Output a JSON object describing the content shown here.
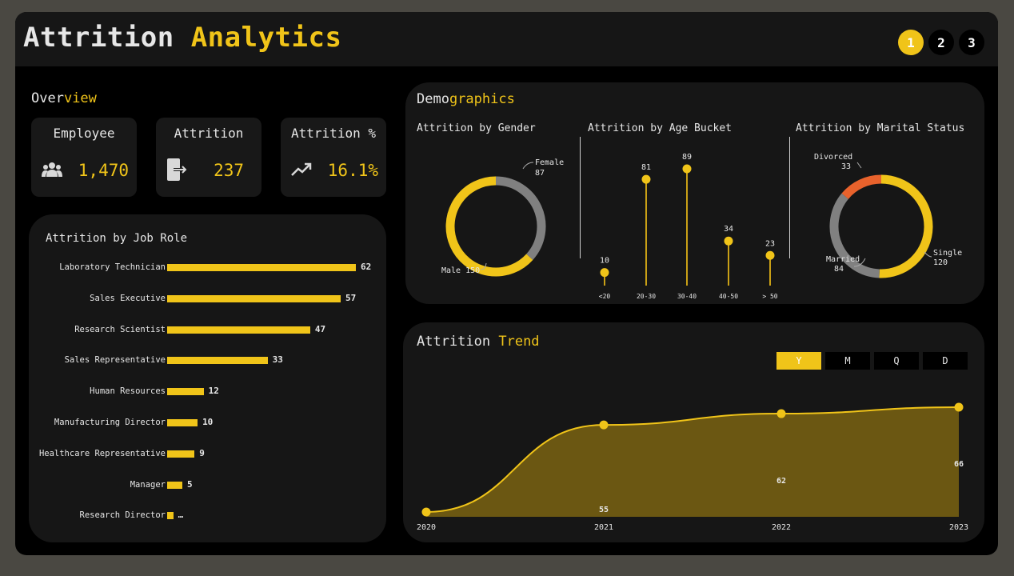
{
  "header": {
    "title_white": "Attrition ",
    "title_yellow": "Analytics",
    "pages": [
      "1",
      "2",
      "3"
    ],
    "active_page": "1"
  },
  "overview": {
    "title_white": "Over",
    "title_yellow": "view",
    "kpis": [
      {
        "label": "Employee",
        "value": "1,470",
        "icon": "people-icon"
      },
      {
        "label": "Attrition",
        "value": "237",
        "icon": "exit-door-icon"
      },
      {
        "label": "Attrition %",
        "value": "16.1%",
        "icon": "trend-up-icon"
      }
    ]
  },
  "job_role": {
    "title": "Attrition by Job Role",
    "rows": [
      {
        "role": "Laboratory Technician",
        "value": 62,
        "label": "62"
      },
      {
        "role": "Sales Executive",
        "value": 57,
        "label": "57"
      },
      {
        "role": "Research Scientist",
        "value": 47,
        "label": "47"
      },
      {
        "role": "Sales Representative",
        "value": 33,
        "label": "33"
      },
      {
        "role": "Human Resources",
        "value": 12,
        "label": "12"
      },
      {
        "role": "Manufacturing Director",
        "value": 10,
        "label": "10"
      },
      {
        "role": "Healthcare Representative",
        "value": 9,
        "label": "9"
      },
      {
        "role": "Manager",
        "value": 5,
        "label": "5"
      },
      {
        "role": "Research Director",
        "value": 2,
        "label": "…"
      }
    ]
  },
  "demographics": {
    "title_white": "Demo",
    "title_yellow": "graphics",
    "gender": {
      "title": "Attrition by Gender",
      "slices": [
        {
          "name": "Female",
          "value": 87,
          "color": "#808080"
        },
        {
          "name": "Male",
          "value": 150,
          "color": "#f0c419"
        }
      ],
      "female_label": "Female",
      "female_value": "87",
      "male_label": "Male 150"
    },
    "age": {
      "title": "Attrition by Age Bucket",
      "buckets": [
        {
          "label": "<20",
          "value": 10,
          "text": "10"
        },
        {
          "label": "20-30",
          "value": 81,
          "text": "81"
        },
        {
          "label": "30-40",
          "value": 89,
          "text": "89"
        },
        {
          "label": "40-50",
          "value": 34,
          "text": "34"
        },
        {
          "label": "> 50",
          "value": 23,
          "text": "23"
        }
      ]
    },
    "marital": {
      "title": "Attrition by Marital Status",
      "slices": [
        {
          "name": "Single",
          "value": 120,
          "color": "#f0c419"
        },
        {
          "name": "Married",
          "value": 84,
          "color": "#808080"
        },
        {
          "name": "Divorced",
          "value": 33,
          "color": "#e8622c"
        }
      ],
      "divorced_label": "Divorced",
      "divorced_value": "33",
      "married_label": "Married",
      "married_value": "84",
      "single_label": "Single",
      "single_value": "120"
    }
  },
  "trend": {
    "title_white": "Attrition ",
    "title_yellow": "Trend",
    "toggles": [
      "Y",
      "M",
      "Q",
      "D"
    ],
    "active_toggle": "Y"
  },
  "chart_data": [
    {
      "type": "bar",
      "title": "Attrition by Job Role",
      "categories": [
        "Laboratory Technician",
        "Sales Executive",
        "Research Scientist",
        "Sales Representative",
        "Human Resources",
        "Manufacturing Director",
        "Healthcare Representative",
        "Manager",
        "Research Director"
      ],
      "values": [
        62,
        57,
        47,
        33,
        12,
        10,
        9,
        5,
        2
      ]
    },
    {
      "type": "pie",
      "title": "Attrition by Gender",
      "categories": [
        "Female",
        "Male"
      ],
      "values": [
        87,
        150
      ]
    },
    {
      "type": "scatter",
      "title": "Attrition by Age Bucket",
      "categories": [
        "<20",
        "20-30",
        "30-40",
        "40-50",
        "> 50"
      ],
      "values": [
        10,
        81,
        89,
        34,
        23
      ]
    },
    {
      "type": "pie",
      "title": "Attrition by Marital Status",
      "categories": [
        "Single",
        "Married",
        "Divorced"
      ],
      "values": [
        120,
        84,
        33
      ]
    },
    {
      "type": "area",
      "title": "Attrition Trend",
      "x": [
        "2020",
        "2021",
        "2022",
        "2023"
      ],
      "values": [
        1,
        55,
        62,
        66
      ],
      "labels": [
        "",
        "55",
        "62",
        "66"
      ]
    }
  ]
}
